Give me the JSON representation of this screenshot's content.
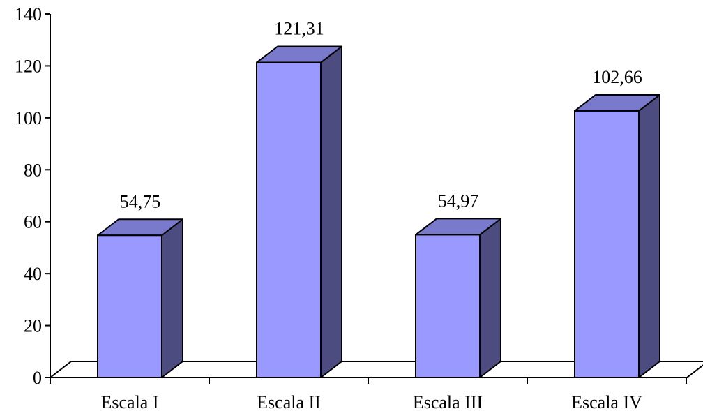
{
  "chart_data": {
    "type": "bar",
    "style": "3d",
    "categories": [
      "Escala I",
      "Escala II",
      "Escala III",
      "Escala IV"
    ],
    "values": [
      54.75,
      121.31,
      54.97,
      102.66
    ],
    "data_labels": [
      "54,75",
      "121,31",
      "54,97",
      "102,66"
    ],
    "yticks": [
      0,
      20,
      40,
      60,
      80,
      100,
      120,
      140
    ],
    "ylim": [
      0,
      140
    ],
    "title": "",
    "xlabel": "",
    "ylabel": "",
    "grid": false,
    "legend": "none",
    "colors": {
      "bar_front": "#9999ff",
      "bar_top": "#7a7acc",
      "bar_side": "#4c4c80",
      "floor": "#ffffff",
      "axis": "#000000"
    }
  }
}
